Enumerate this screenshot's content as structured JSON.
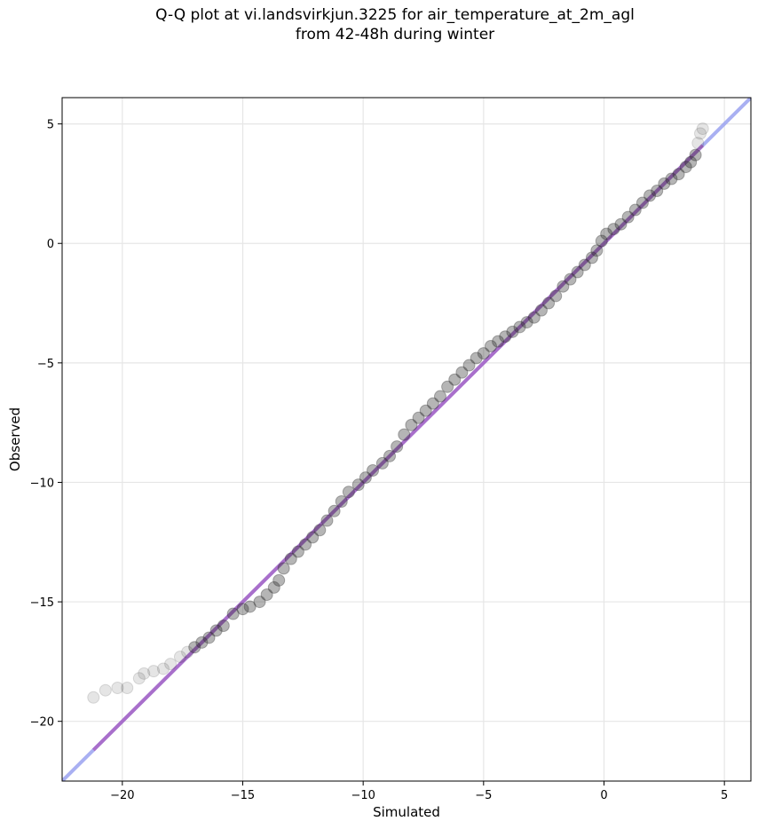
{
  "chart_data": {
    "type": "scatter",
    "title_line1": "Q-Q plot at vi.landsvirkjun.3225 for air_temperature_at_2m_agl",
    "title_line2": "from 42-48h during winter",
    "xlabel": "Simulated",
    "ylabel": "Observed",
    "xlim": [
      -22.5,
      6.1
    ],
    "ylim": [
      -22.5,
      6.1
    ],
    "xticks": [
      -20,
      -15,
      -10,
      -5,
      0,
      5
    ],
    "yticks": [
      -20,
      -15,
      -10,
      -5,
      0,
      5
    ],
    "xtick_labels": [
      "−20",
      "−15",
      "−10",
      "−5",
      "0",
      "5"
    ],
    "ytick_labels": [
      "−20",
      "−15",
      "−10",
      "−5",
      "0",
      "5"
    ],
    "grid": true,
    "reference_line": {
      "x": [
        -22.5,
        6.1
      ],
      "y": [
        -22.5,
        6.1
      ],
      "color": "#9aa2f0"
    },
    "fit_line": {
      "x": [
        -21.2,
        4.1
      ],
      "y": [
        -21.2,
        4.1
      ],
      "color": "#a868c6"
    },
    "point_color": "#2a2a2a",
    "series": [
      {
        "values": [
          [
            -21.2,
            -19.0
          ],
          [
            -20.7,
            -18.7
          ],
          [
            -20.2,
            -18.6
          ],
          [
            -19.8,
            -18.6
          ],
          [
            -19.3,
            -18.2
          ],
          [
            -19.1,
            -18.0
          ],
          [
            -18.7,
            -17.9
          ],
          [
            -18.3,
            -17.8
          ],
          [
            -18.0,
            -17.6
          ],
          [
            -17.6,
            -17.3
          ],
          [
            -17.3,
            -17.1
          ],
          [
            -17.0,
            -16.9
          ],
          [
            -16.7,
            -16.7
          ],
          [
            -16.4,
            -16.5
          ],
          [
            -16.1,
            -16.2
          ],
          [
            -15.8,
            -16.0
          ],
          [
            -15.4,
            -15.5
          ],
          [
            -15.0,
            -15.3
          ],
          [
            -14.7,
            -15.2
          ],
          [
            -14.3,
            -15.0
          ],
          [
            -14.0,
            -14.7
          ],
          [
            -13.7,
            -14.4
          ],
          [
            -13.5,
            -14.1
          ],
          [
            -13.3,
            -13.6
          ],
          [
            -13.0,
            -13.2
          ],
          [
            -12.7,
            -12.9
          ],
          [
            -12.4,
            -12.6
          ],
          [
            -12.1,
            -12.3
          ],
          [
            -11.8,
            -12.0
          ],
          [
            -11.5,
            -11.6
          ],
          [
            -11.2,
            -11.2
          ],
          [
            -10.9,
            -10.8
          ],
          [
            -10.6,
            -10.4
          ],
          [
            -10.2,
            -10.1
          ],
          [
            -9.9,
            -9.8
          ],
          [
            -9.6,
            -9.5
          ],
          [
            -9.2,
            -9.2
          ],
          [
            -8.9,
            -8.9
          ],
          [
            -8.6,
            -8.5
          ],
          [
            -8.3,
            -8.0
          ],
          [
            -8.0,
            -7.6
          ],
          [
            -7.7,
            -7.3
          ],
          [
            -7.4,
            -7.0
          ],
          [
            -7.1,
            -6.7
          ],
          [
            -6.8,
            -6.4
          ],
          [
            -6.5,
            -6.0
          ],
          [
            -6.2,
            -5.7
          ],
          [
            -5.9,
            -5.4
          ],
          [
            -5.6,
            -5.1
          ],
          [
            -5.3,
            -4.8
          ],
          [
            -5.0,
            -4.6
          ],
          [
            -4.7,
            -4.3
          ],
          [
            -4.4,
            -4.1
          ],
          [
            -4.1,
            -3.9
          ],
          [
            -3.8,
            -3.7
          ],
          [
            -3.5,
            -3.5
          ],
          [
            -3.2,
            -3.3
          ],
          [
            -2.9,
            -3.1
          ],
          [
            -2.6,
            -2.8
          ],
          [
            -2.3,
            -2.5
          ],
          [
            -2.0,
            -2.2
          ],
          [
            -1.7,
            -1.8
          ],
          [
            -1.4,
            -1.5
          ],
          [
            -1.1,
            -1.2
          ],
          [
            -0.8,
            -0.9
          ],
          [
            -0.5,
            -0.6
          ],
          [
            -0.3,
            -0.3
          ],
          [
            -0.1,
            0.1
          ],
          [
            0.1,
            0.4
          ],
          [
            0.4,
            0.6
          ],
          [
            0.7,
            0.8
          ],
          [
            1.0,
            1.1
          ],
          [
            1.3,
            1.4
          ],
          [
            1.6,
            1.7
          ],
          [
            1.9,
            2.0
          ],
          [
            2.2,
            2.2
          ],
          [
            2.5,
            2.5
          ],
          [
            2.8,
            2.7
          ],
          [
            3.1,
            2.9
          ],
          [
            3.4,
            3.2
          ],
          [
            3.6,
            3.4
          ],
          [
            3.8,
            3.7
          ],
          [
            3.9,
            4.2
          ],
          [
            4.0,
            4.6
          ],
          [
            4.1,
            4.8
          ]
        ]
      }
    ]
  }
}
